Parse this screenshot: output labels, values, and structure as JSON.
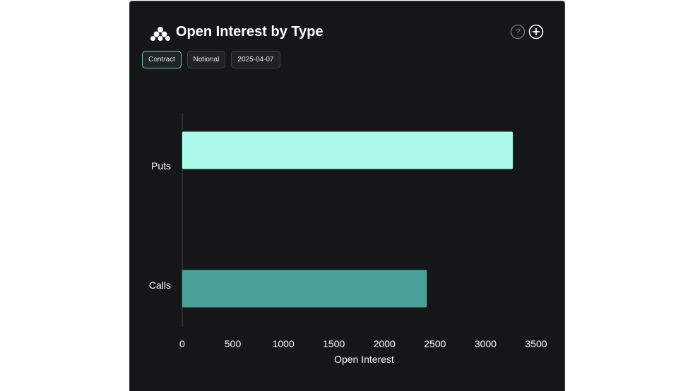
{
  "header": {
    "title": "Open Interest by Type",
    "icons": [
      "logo-icon",
      "help-icon",
      "add-icon"
    ]
  },
  "filters": {
    "contract_label": "Contract",
    "notional_label": "Notional",
    "date_label": "2025-04-07",
    "active": "Contract"
  },
  "colors": {
    "puts": "#abf9eb",
    "calls": "#4a9f98",
    "active_chip_border": "#74c7c3",
    "background": "#151618"
  },
  "chart_data": {
    "type": "bar",
    "orientation": "horizontal",
    "categories": [
      "Puts",
      "Calls"
    ],
    "values": [
      3270,
      2420
    ],
    "xlabel": "Open Interest",
    "ylabel": "",
    "xlim": [
      0,
      3500
    ],
    "xticks": [
      0,
      500,
      1000,
      1500,
      2000,
      2500,
      3000,
      3500
    ],
    "grid": false
  }
}
